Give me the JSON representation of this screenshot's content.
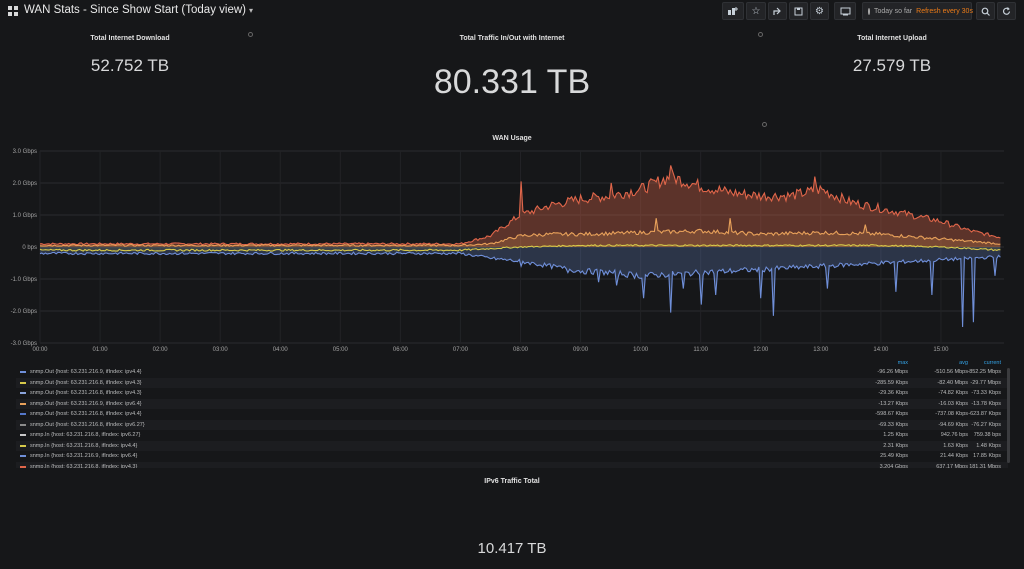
{
  "header": {
    "title": "WAN Stats - Since Show Start (Today view)",
    "caret": "▾",
    "timepicker": {
      "range": "Today so far",
      "refresh": "Refresh every 30s"
    },
    "buttons": [
      "add-panel",
      "star",
      "share",
      "save",
      "settings",
      "tv-mode",
      "search",
      "refresh"
    ]
  },
  "stats": {
    "download": {
      "title": "Total Internet Download",
      "value": "52.752 TB"
    },
    "traffic": {
      "title": "Total Traffic In/Out with Internet",
      "value": "80.331 TB"
    },
    "upload": {
      "title": "Total Internet Upload",
      "value": "27.579 TB"
    },
    "ipv6": {
      "title": "IPv6 Traffic Total",
      "value": "10.417 TB"
    }
  },
  "chart_data": {
    "type": "area",
    "title": "WAN Usage",
    "y_ticks": [
      "3.0 Gbps",
      "2.0 Gbps",
      "1.0 Gbps",
      "0 bps",
      "-1.0 Gbps",
      "-2.0 Gbps",
      "-3.0 Gbps"
    ],
    "ylim": [
      -3.0,
      3.0
    ],
    "yunit": "Gbps",
    "x_ticks": [
      "00:00",
      "01:00",
      "02:00",
      "03:00",
      "04:00",
      "05:00",
      "06:00",
      "07:00",
      "08:00",
      "09:00",
      "10:00",
      "11:00",
      "12:00",
      "13:00",
      "14:00",
      "15:00"
    ],
    "x_hours": [
      0,
      16.05
    ],
    "grid": true,
    "colors": {
      "download": "#e0664a",
      "v6in": "#e8a15a",
      "yellow": "#d6c94a",
      "upload": "#6f8fd9"
    },
    "series": [
      {
        "id": "download",
        "x": [
          0,
          7,
          7.5,
          8,
          8.5,
          9,
          9.5,
          10,
          10.5,
          11,
          11.5,
          12,
          12.5,
          13,
          13.5,
          14,
          14.5,
          15,
          15.5,
          16
        ],
        "values": [
          0.1,
          0.1,
          0.35,
          1.0,
          1.3,
          1.5,
          1.6,
          1.8,
          2.2,
          1.9,
          1.7,
          1.6,
          1.6,
          1.8,
          1.4,
          1.2,
          1.0,
          0.8,
          0.5,
          0.3
        ]
      },
      {
        "id": "v6in",
        "x": [
          0,
          7,
          7.5,
          8,
          8.5,
          9,
          10,
          11,
          12,
          13,
          14,
          15,
          16
        ],
        "values": [
          0.05,
          0.05,
          0.1,
          0.35,
          0.4,
          0.4,
          0.45,
          0.5,
          0.4,
          0.45,
          0.4,
          0.25,
          0.1
        ]
      },
      {
        "id": "yellow",
        "x": [
          0,
          7,
          8,
          9,
          10,
          11,
          12,
          13,
          14,
          15,
          16
        ],
        "values": [
          -0.1,
          -0.1,
          0.0,
          0.05,
          0.05,
          0.05,
          0.05,
          0.05,
          0.05,
          0.0,
          -0.1
        ]
      },
      {
        "id": "upload",
        "x": [
          0,
          7,
          7.5,
          8,
          8.5,
          9,
          9.5,
          10,
          10.5,
          11,
          11.5,
          12,
          12.5,
          13,
          13.5,
          14,
          14.5,
          15,
          15.5,
          16
        ],
        "values": [
          -0.2,
          -0.2,
          -0.35,
          -0.45,
          -0.6,
          -0.75,
          -0.8,
          -0.9,
          -0.85,
          -0.8,
          -0.75,
          -0.7,
          -0.65,
          -0.6,
          -0.55,
          -0.5,
          -0.45,
          -0.4,
          -0.35,
          -0.3
        ]
      }
    ],
    "dips": [
      {
        "x": 10.5,
        "y": -2.05
      },
      {
        "x": 10.05,
        "y": -1.6
      },
      {
        "x": 10.7,
        "y": -1.3
      },
      {
        "x": 11.0,
        "y": -1.8
      },
      {
        "x": 11.25,
        "y": -1.5
      },
      {
        "x": 12.0,
        "y": -1.6
      },
      {
        "x": 12.2,
        "y": -2.15
      },
      {
        "x": 13.1,
        "y": -1.3
      },
      {
        "x": 14.25,
        "y": -1.4
      },
      {
        "x": 14.85,
        "y": -1.5
      },
      {
        "x": 15.35,
        "y": -2.5
      },
      {
        "x": 15.55,
        "y": -2.35
      },
      {
        "x": 15.9,
        "y": -0.9
      },
      {
        "x": 8.0,
        "y": -0.6
      },
      {
        "x": 8.8,
        "y": -0.8
      },
      {
        "x": 9.3,
        "y": -1.1
      },
      {
        "x": 9.6,
        "y": -1.2
      }
    ],
    "peaks": [
      {
        "x": 8.0,
        "y": 2.05
      },
      {
        "x": 10.5,
        "y": 2.55
      },
      {
        "x": 11.3,
        "y": 1.9
      },
      {
        "x": 12.9,
        "y": 2.2
      },
      {
        "x": 9.5,
        "y": 2.0
      },
      {
        "x": 10.25,
        "y": 0.9
      },
      {
        "x": 11.5,
        "y": 0.9
      },
      {
        "x": 13.75,
        "y": 0.7
      }
    ]
  },
  "legend": {
    "columns": [
      "max",
      "avg",
      "current"
    ],
    "rows": [
      {
        "name": "snmp.Out {host: 63.231.216.9, ifIndex: ipv4.4}",
        "color": "#6f8fd9",
        "max": "-96.26 Mbps",
        "avg": "-510.56 Mbps",
        "current": "-852.25 Mbps"
      },
      {
        "name": "snmp.Out {host: 63.231.216.8, ifIndex: ipv4.3}",
        "color": "#d6c94a",
        "max": "-285.59 Kbps",
        "avg": "-82.40 Mbps",
        "current": "-29.77 Mbps"
      },
      {
        "name": "snmp.Out {host: 63.231.216.8, ifIndex: ipv4.3}",
        "color": "#8aa3db",
        "max": "-29.36 Kbps",
        "avg": "-74.82 Kbps",
        "current": "-73.33 Kbps"
      },
      {
        "name": "snmp.Out {host: 63.231.216.9, ifIndex: ipv6.4}",
        "color": "#e8a15a",
        "max": "-13.27 Kbps",
        "avg": "-16.03 Kbps",
        "current": "-13.78 Kbps"
      },
      {
        "name": "snmp.Out {host: 63.231.216.8, ifIndex: ipv4.4}",
        "color": "#5477c9",
        "max": "-598.67 Kbps",
        "avg": "-737.08 Kbps",
        "current": "-623.87 Kbps"
      },
      {
        "name": "snmp.Out {host: 63.231.216.8, ifIndex: ipv6.27}",
        "color": "#8c8c8c",
        "max": "-69.33 Kbps",
        "avg": "-94.69 Kbps",
        "current": "-76.27 Kbps"
      },
      {
        "name": "snmp.In {host: 63.231.216.8, ifIndex: ipv6.27}",
        "color": "#c8c8c8",
        "max": "1.25 Kbps",
        "avg": "942.76 bps",
        "current": "759.38 bps"
      },
      {
        "name": "snmp.In {host: 63.231.216.8, ifIndex: ipv4.4}",
        "color": "#d6c94a",
        "max": "2.31 Kbps",
        "avg": "1.63 Kbps",
        "current": "1.48 Kbps"
      },
      {
        "name": "snmp.In {host: 63.231.216.9, ifIndex: ipv6.4}",
        "color": "#6f8fd9",
        "max": "25.49 Kbps",
        "avg": "21.44 Kbps",
        "current": "17.85 Kbps"
      },
      {
        "name": "snmp.In {host: 63.231.216.8, ifIndex: ipv4.3}",
        "color": "#e0664a",
        "max": "3.204 Gbps",
        "avg": "637.17 Mbps",
        "current": "181.31 Mbps"
      }
    ]
  }
}
